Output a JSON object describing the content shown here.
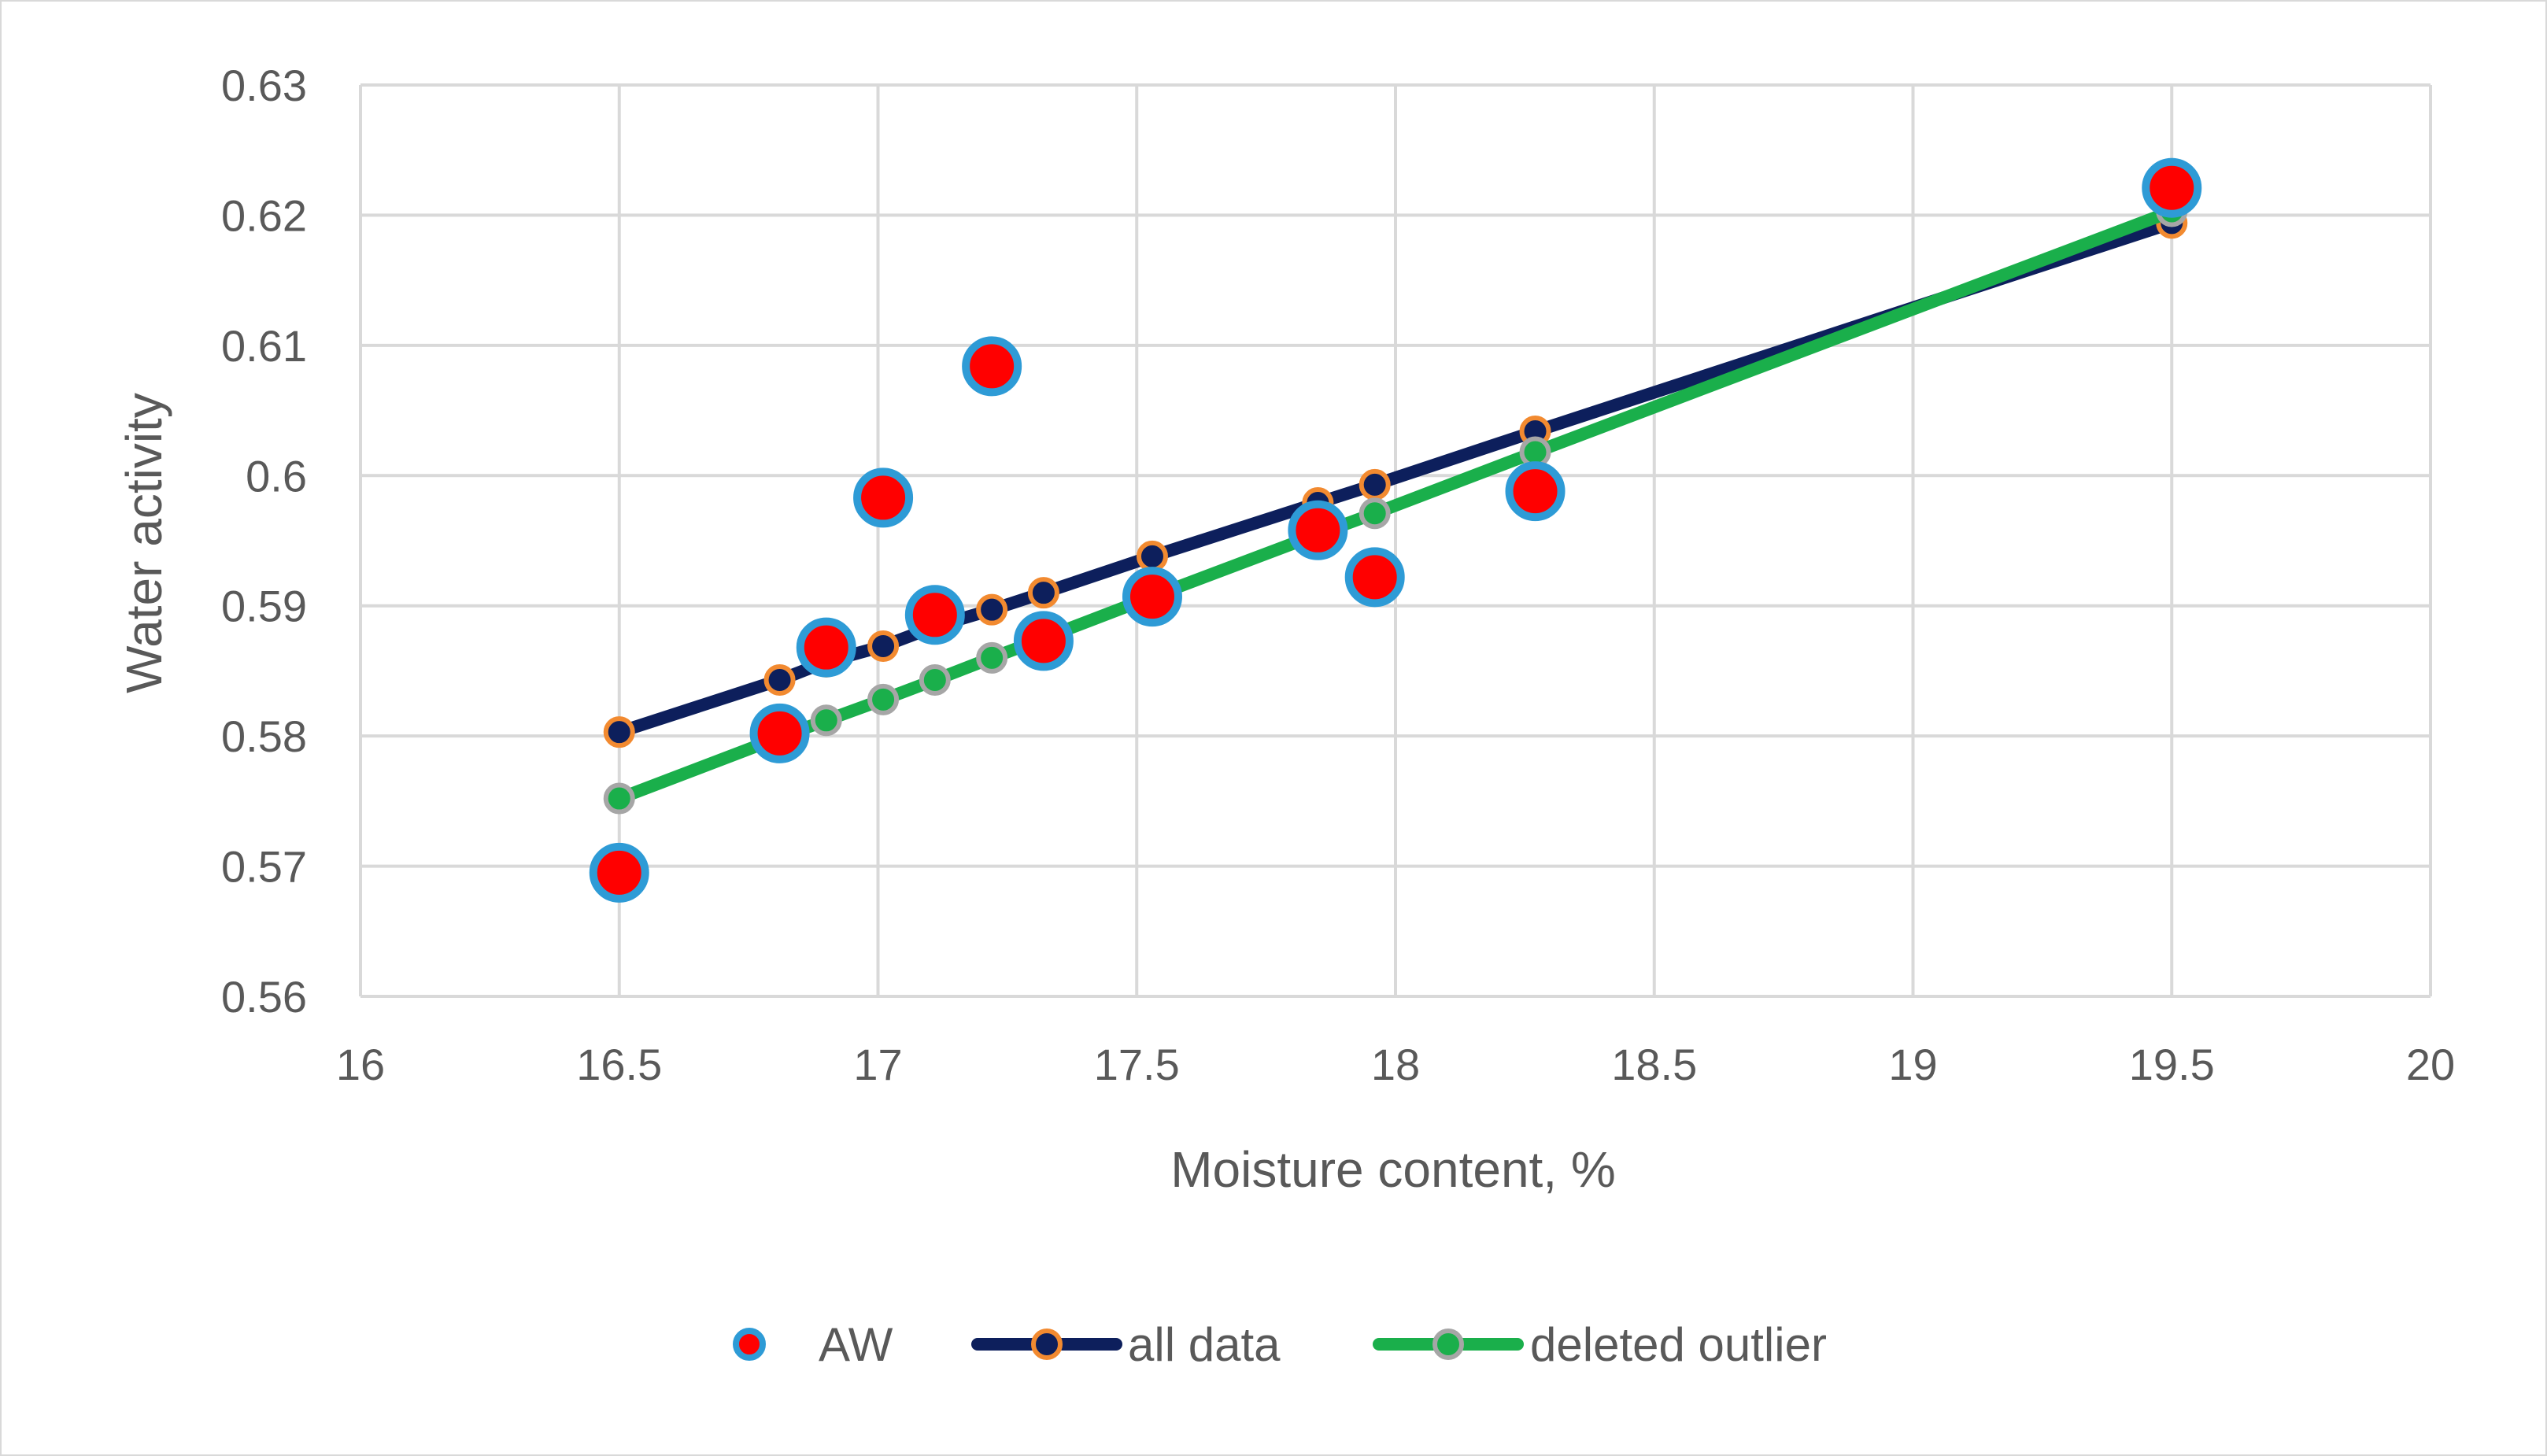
{
  "chart_data": {
    "type": "scatter",
    "title": "",
    "xlabel": "Moisture content, %",
    "ylabel": "Water activity",
    "xlim": [
      16,
      20
    ],
    "ylim": [
      0.56,
      0.63
    ],
    "x_ticks": [
      "16",
      "16.5",
      "17",
      "17.5",
      "18",
      "18.5",
      "19",
      "19.5",
      "20"
    ],
    "y_ticks": [
      "0.56",
      "0.57",
      "0.58",
      "0.59",
      "0.6",
      "0.61",
      "0.62",
      "0.63"
    ],
    "grid": true,
    "legend_position": "bottom",
    "series": [
      {
        "name": "AW",
        "kind": "markers",
        "marker_fill": "#ff0000",
        "marker_edge": "#2e9bd6",
        "x": [
          16.5,
          16.81,
          16.9,
          17.01,
          17.11,
          17.22,
          17.32,
          17.53,
          17.85,
          17.96,
          18.27,
          19.5
        ],
        "y": [
          0.5695,
          0.5802,
          0.5868,
          0.5983,
          0.5893,
          0.6084,
          0.5873,
          0.5907,
          0.5958,
          0.5922,
          0.5988,
          0.6221
        ]
      },
      {
        "name": "all data",
        "kind": "line-markers",
        "line_color": "#0d1f5c",
        "marker_fill": "#0d1f5c",
        "marker_edge": "#f28a30",
        "x": [
          16.5,
          16.81,
          16.9,
          17.01,
          17.11,
          17.22,
          17.32,
          17.53,
          17.85,
          17.96,
          18.27,
          19.5
        ],
        "y": [
          0.5803,
          0.5843,
          0.5857,
          0.5869,
          0.5884,
          0.5897,
          0.591,
          0.5938,
          0.5979,
          0.5993,
          0.6034,
          0.6194
        ]
      },
      {
        "name": "deleted outlier",
        "kind": "line-markers",
        "line_color": "#1aaf4b",
        "marker_fill": "#1aaf4b",
        "marker_edge": "#a6a6a6",
        "x": [
          16.5,
          16.81,
          16.9,
          17.01,
          17.11,
          17.22,
          17.32,
          17.53,
          17.85,
          17.96,
          18.27,
          19.5
        ],
        "y": [
          0.5752,
          0.5799,
          0.5812,
          0.5828,
          0.5843,
          0.586,
          0.5875,
          0.5907,
          0.5955,
          0.5971,
          0.6018,
          0.6203
        ]
      }
    ]
  }
}
